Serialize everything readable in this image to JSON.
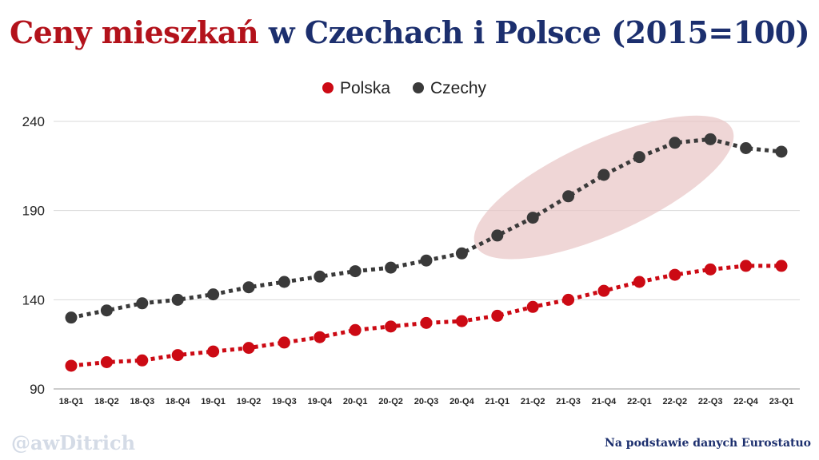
{
  "title": {
    "part1": "Ceny mieszkań",
    "part2": "w Czechach i Polsce (2015=100)"
  },
  "footer": {
    "watermark": "@awDitrich",
    "source": "Na podstawie danych  Eurostatuo"
  },
  "colors": {
    "polska": "#cc0a14",
    "czechy": "#3a3a3a",
    "title_red": "#b3121b",
    "title_blue": "#1c2f6e",
    "highlight": "#e8c4c4"
  },
  "chart_data": {
    "type": "line",
    "categories": [
      "18-Q1",
      "18-Q2",
      "18-Q3",
      "18-Q4",
      "19-Q1",
      "19-Q2",
      "19-Q3",
      "19-Q4",
      "20-Q1",
      "20-Q2",
      "20-Q3",
      "20-Q4",
      "21-Q1",
      "21-Q2",
      "21-Q3",
      "21-Q4",
      "22-Q1",
      "22-Q2",
      "22-Q3",
      "22-Q4",
      "23-Q1"
    ],
    "series": [
      {
        "name": "Polska",
        "values": [
          103,
          105,
          106,
          109,
          111,
          113,
          116,
          119,
          123,
          125,
          127,
          128,
          131,
          136,
          140,
          145,
          150,
          154,
          157,
          159,
          159
        ]
      },
      {
        "name": "Czechy",
        "values": [
          130,
          134,
          138,
          140,
          143,
          147,
          150,
          153,
          156,
          158,
          162,
          166,
          176,
          186,
          198,
          210,
          220,
          228,
          230,
          225,
          223
        ]
      }
    ],
    "yticks": [
      90,
      140,
      190,
      240
    ],
    "ylim": [
      90,
      240
    ],
    "grid": true,
    "legend_position": "top-center",
    "highlight_range": [
      "21-Q1",
      "22-Q3"
    ]
  }
}
